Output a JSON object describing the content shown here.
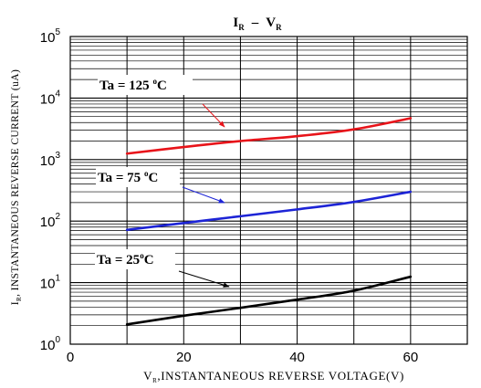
{
  "chart_data": {
    "type": "line",
    "title": {
      "main": "I",
      "main_sub": "R",
      "dash": "–",
      "second": "V",
      "second_sub": "R"
    },
    "xlabel": {
      "prefix": "V",
      "sub": "R",
      "rest": ",INSTANTANEOUS REVERSE  VOLTAGE(V)"
    },
    "ylabel": {
      "prefix": "I",
      "sub": "R",
      "rest": ", INSTANTANEOUS REVERSE CURRENT (uA)"
    },
    "x_scale": "linear",
    "y_scale": "log",
    "xlim": [
      0,
      70
    ],
    "ylim": [
      1,
      100000
    ],
    "grid": true,
    "x_ticks": [
      "0",
      "20",
      "40",
      "60"
    ],
    "y_ticks": [
      {
        "base": "10",
        "exp": "0"
      },
      {
        "base": "10",
        "exp": "1"
      },
      {
        "base": "10",
        "exp": "2"
      },
      {
        "base": "10",
        "exp": "3"
      },
      {
        "base": "10",
        "exp": "4"
      },
      {
        "base": "10",
        "exp": "5"
      }
    ],
    "series": [
      {
        "name": "Ta = 125 °C",
        "color": "#e8141a",
        "x": [
          10,
          20,
          30,
          40,
          50,
          60
        ],
        "y": [
          1250,
          1600,
          2000,
          2400,
          3100,
          4700
        ],
        "label": {
          "text_main": "Ta = 125 ",
          "deg": "o",
          "text_unit": "C"
        }
      },
      {
        "name": "Ta = 75 °C",
        "color": "#1d24d6",
        "x": [
          10,
          20,
          30,
          40,
          50,
          60
        ],
        "y": [
          72,
          93,
          120,
          155,
          205,
          300
        ],
        "label": {
          "text_main": "Ta = 75 ",
          "deg": "o",
          "text_unit": "C"
        }
      },
      {
        "name": "Ta = 25°C",
        "color": "#000000",
        "x": [
          10,
          20,
          30,
          40,
          50,
          60
        ],
        "y": [
          2.1,
          2.9,
          3.9,
          5.3,
          7.4,
          12.5
        ],
        "label": {
          "text_main": "Ta = 25",
          "deg": "o",
          "text_unit": "C"
        }
      }
    ]
  }
}
